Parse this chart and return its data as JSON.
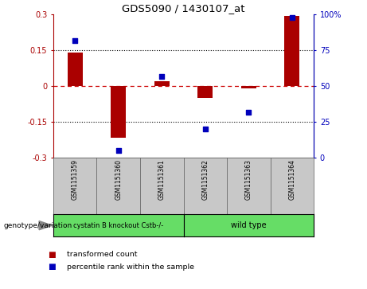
{
  "title": "GDS5090 / 1430107_at",
  "samples": [
    "GSM1151359",
    "GSM1151360",
    "GSM1151361",
    "GSM1151362",
    "GSM1151363",
    "GSM1151364"
  ],
  "bar_values": [
    0.14,
    -0.215,
    0.02,
    -0.05,
    -0.01,
    0.295
  ],
  "percentile_values": [
    82,
    5,
    57,
    20,
    32,
    98
  ],
  "ylim_left": [
    -0.3,
    0.3
  ],
  "ylim_right": [
    0,
    100
  ],
  "yticks_left": [
    -0.3,
    -0.15,
    0,
    0.15,
    0.3
  ],
  "yticks_right": [
    0,
    25,
    50,
    75,
    100
  ],
  "bar_color": "#AA0000",
  "dot_color": "#0000BB",
  "zero_line_color": "#CC0000",
  "hline_dotted_values": [
    -0.15,
    0.15
  ],
  "group1_label": "cystatin B knockout Cstb-/-",
  "group2_label": "wild type",
  "group_color": "#66DD66",
  "genotype_label": "genotype/variation",
  "legend_bar_label": "transformed count",
  "legend_dot_label": "percentile rank within the sample",
  "sample_bg_color": "#C8C8C8",
  "fig_width": 4.61,
  "fig_height": 3.63,
  "dpi": 100
}
